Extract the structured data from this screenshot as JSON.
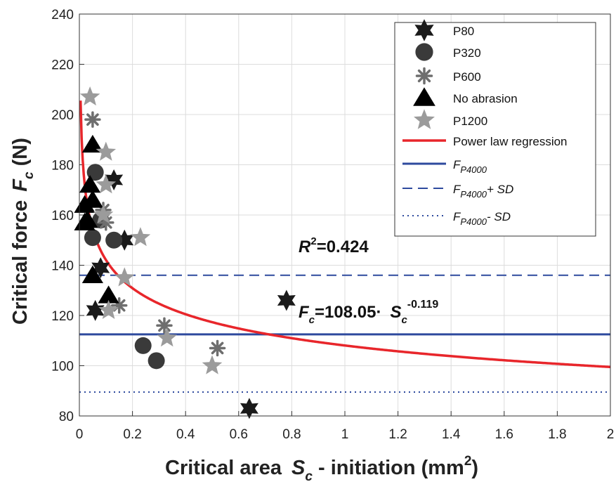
{
  "chart_data": {
    "type": "scatter",
    "xlabel_main": "Critical area",
    "xlabel_sym": "S",
    "xlabel_sub": "c",
    "xlabel_tail": " - initiation (mm",
    "xlabel_sup": "2",
    "xlabel_end": ")",
    "ylabel_main": "Critical force",
    "ylabel_sym": "F",
    "ylabel_sub": "c",
    "ylabel_unit": "(N)",
    "xlim": [
      0,
      2
    ],
    "ylim": [
      80,
      240
    ],
    "xticks": [
      "0",
      "0.2",
      "0.4",
      "0.6",
      "0.8",
      "1",
      "1.2",
      "1.4",
      "1.6",
      "1.8",
      "2"
    ],
    "yticks": [
      "80",
      "100",
      "120",
      "140",
      "160",
      "180",
      "200",
      "220",
      "240"
    ],
    "grid": true,
    "legend_position": "top-right",
    "series": [
      {
        "name": "P80",
        "marker": "star6",
        "color": "#1a1a1a",
        "points": [
          [
            0.13,
            174
          ],
          [
            0.17,
            150
          ],
          [
            0.08,
            139
          ],
          [
            0.78,
            126
          ],
          [
            0.06,
            122
          ],
          [
            0.64,
            83
          ]
        ]
      },
      {
        "name": "P320",
        "marker": "circle",
        "color": "#3a3a3a",
        "points": [
          [
            0.06,
            177
          ],
          [
            0.08,
            158
          ],
          [
            0.05,
            151
          ],
          [
            0.13,
            150
          ],
          [
            0.24,
            108
          ],
          [
            0.29,
            102
          ]
        ]
      },
      {
        "name": "P600",
        "marker": "asterisk",
        "color": "#6e6e6e",
        "points": [
          [
            0.05,
            198
          ],
          [
            0.09,
            162
          ],
          [
            0.1,
            157
          ],
          [
            0.15,
            124
          ],
          [
            0.32,
            116
          ],
          [
            0.52,
            107
          ]
        ]
      },
      {
        "name": "No abrasion",
        "marker": "triangle",
        "color": "#000000",
        "points": [
          [
            0.05,
            188
          ],
          [
            0.04,
            172
          ],
          [
            0.05,
            166
          ],
          [
            0.02,
            164
          ],
          [
            0.03,
            158
          ],
          [
            0.02,
            157
          ],
          [
            0.05,
            136
          ],
          [
            0.11,
            128
          ]
        ]
      },
      {
        "name": "P1200",
        "marker": "star5",
        "color": "#9b9b9b",
        "points": [
          [
            0.04,
            207
          ],
          [
            0.1,
            185
          ],
          [
            0.1,
            172
          ],
          [
            0.09,
            160
          ],
          [
            0.23,
            151
          ],
          [
            0.17,
            135
          ],
          [
            0.11,
            122
          ],
          [
            0.33,
            111
          ],
          [
            0.5,
            100
          ]
        ]
      }
    ],
    "regression": {
      "name": "Power law regression",
      "a": 108.05,
      "b": -0.119,
      "color": "#e8262b"
    },
    "reference_lines": [
      {
        "name_main": "F",
        "name_sub": "P4000",
        "name_tail": "",
        "value": 112.5,
        "style": "solid",
        "color": "#2e4a9e"
      },
      {
        "name_main": "F",
        "name_sub": "P4000",
        "name_tail": "+ SD",
        "value": 136,
        "style": "dashed",
        "color": "#2e4a9e"
      },
      {
        "name_main": "F",
        "name_sub": "P4000",
        "name_tail": "- SD",
        "value": 89.5,
        "style": "dotted",
        "color": "#2e4a9e"
      }
    ],
    "annotations": {
      "r2_main": "R",
      "r2_sup": "2",
      "r2_value": "=0.424",
      "eq_main": "F",
      "eq_sub": "c",
      "eq_mid": "=108.05·",
      "eq_sym": "S",
      "eq_sym_sub": "c",
      "eq_exp": "-0.119"
    }
  }
}
